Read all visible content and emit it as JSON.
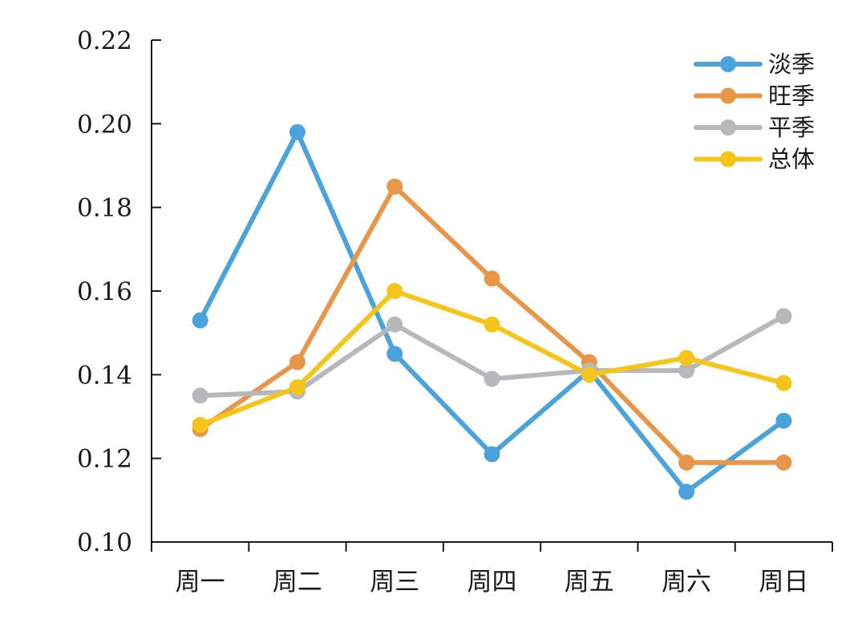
{
  "chart_data": {
    "type": "line",
    "categories": [
      "周一",
      "周二",
      "周三",
      "周四",
      "周五",
      "周六",
      "周日"
    ],
    "ylim": [
      0.1,
      0.22
    ],
    "y_ticks": [
      "0.10",
      "0.12",
      "0.14",
      "0.16",
      "0.18",
      "0.20",
      "0.22"
    ],
    "grid": false,
    "legend_position": "top-right",
    "series": [
      {
        "name": "淡季",
        "color": "#4aa3da",
        "values": [
          0.153,
          0.198,
          0.145,
          0.121,
          0.141,
          0.112,
          0.129
        ]
      },
      {
        "name": "旺季",
        "color": "#e8964a",
        "values": [
          0.127,
          0.143,
          0.185,
          0.163,
          0.143,
          0.119,
          0.119
        ]
      },
      {
        "name": "平季",
        "color": "#b6b8bc",
        "values": [
          0.135,
          0.136,
          0.152,
          0.139,
          0.141,
          0.141,
          0.154
        ]
      },
      {
        "name": "总体",
        "color": "#f6c51b",
        "values": [
          0.128,
          0.137,
          0.16,
          0.152,
          0.14,
          0.144,
          0.138
        ]
      }
    ]
  }
}
